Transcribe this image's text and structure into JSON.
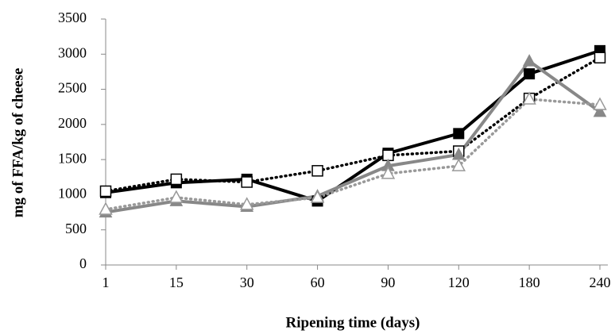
{
  "chart_data": {
    "type": "line",
    "x_label": "Ripening time (days)",
    "y_label": "mg of FFA/kg of cheese",
    "categories": [
      "1",
      "15",
      "30",
      "60",
      "90",
      "120",
      "180",
      "240"
    ],
    "ylim": [
      0,
      3500
    ],
    "yticks": [
      0,
      500,
      1000,
      1500,
      2000,
      2500,
      3000,
      3500
    ],
    "grid": false,
    "series": [
      {
        "color": "#000000",
        "dash": "solid",
        "marker": "square",
        "marker_filled": true,
        "values": [
          1030,
          1170,
          1220,
          910,
          1590,
          1870,
          2720,
          3050
        ]
      },
      {
        "color": "#000000",
        "dash": "dotted",
        "marker": "square",
        "marker_filled": false,
        "values": [
          1050,
          1220,
          1180,
          1340,
          1560,
          1620,
          2370,
          2950
        ]
      },
      {
        "color": "#888888",
        "dash": "solid",
        "marker": "triangle",
        "marker_filled": true,
        "values": [
          750,
          910,
          830,
          980,
          1410,
          1570,
          2900,
          2180
        ]
      },
      {
        "color": "#999999",
        "dash": "dotted",
        "marker": "triangle",
        "marker_filled": false,
        "values": [
          790,
          960,
          860,
          960,
          1300,
          1410,
          2360,
          2280
        ]
      }
    ]
  }
}
